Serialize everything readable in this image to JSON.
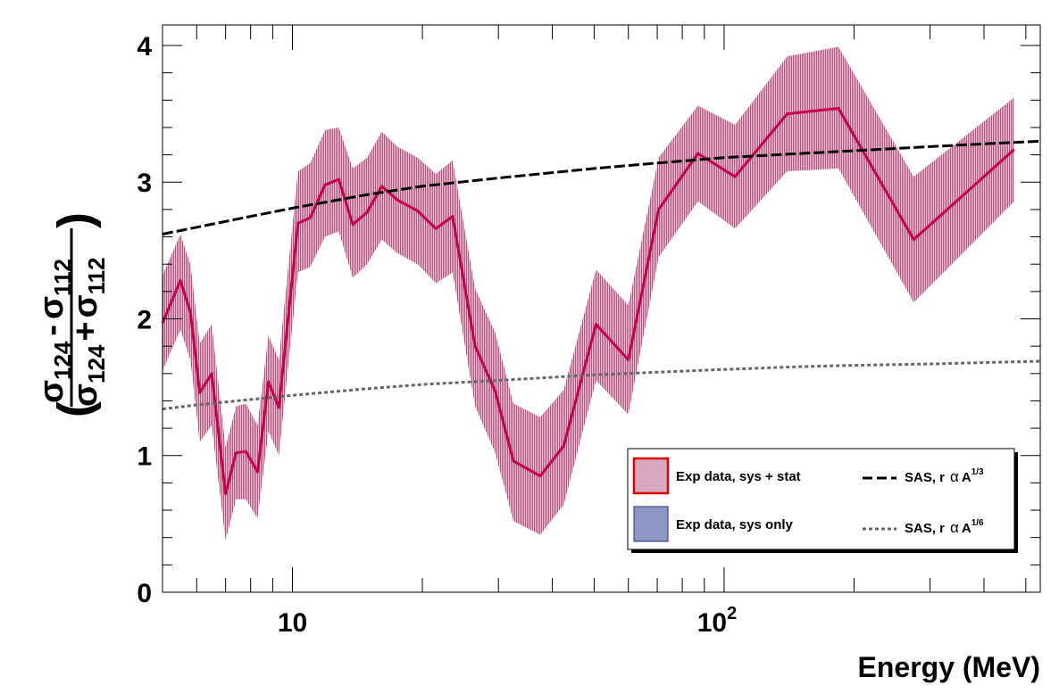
{
  "chart_data": {
    "type": "line",
    "xscale": "log",
    "xlim": [
      5,
      540
    ],
    "ylim": [
      0,
      4.15
    ],
    "xlabel": "Energy (MeV)",
    "ylabel": {
      "num_a": "σ",
      "num_a_sub": "124",
      "num_op": "-",
      "num_b": "σ",
      "num_b_sub": "112",
      "den_a": "σ",
      "den_a_sub": "124",
      "den_op": "+",
      "den_b": "σ",
      "den_b_sub": "112"
    },
    "x_ticks": [
      {
        "value": 10,
        "label": "10",
        "sup": ""
      },
      {
        "value": 100,
        "label": "10",
        "sup": "2"
      }
    ],
    "y_ticks": [
      {
        "value": 0,
        "label": "0"
      },
      {
        "value": 1,
        "label": "1"
      },
      {
        "value": 2,
        "label": "2"
      },
      {
        "value": 3,
        "label": "3"
      },
      {
        "value": 4,
        "label": "4"
      }
    ],
    "grid": false,
    "legend_position": "bottom-right",
    "series": [
      {
        "key": "exp_sys_stat",
        "name": "Exp data, sys + stat",
        "kind": "band_line",
        "color": "#c8004a",
        "band_color": "#c98aa8",
        "x": [
          5.0,
          5.5,
          5.8,
          6.1,
          6.5,
          7.0,
          7.4,
          7.8,
          8.3,
          8.8,
          9.3,
          10.3,
          11.0,
          11.9,
          12.8,
          13.8,
          14.9,
          16.1,
          17.5,
          19.5,
          21.5,
          23.5,
          26.5,
          29.5,
          32.5,
          37.5,
          42.5,
          50.5,
          60.0,
          70.5,
          87.0,
          106.0,
          140.0,
          184.0,
          275.0,
          470.0
        ],
        "y": [
          1.97,
          2.28,
          2.05,
          1.46,
          1.6,
          0.72,
          1.02,
          1.03,
          0.88,
          1.54,
          1.35,
          2.7,
          2.74,
          2.98,
          3.02,
          2.69,
          2.78,
          2.97,
          2.87,
          2.79,
          2.66,
          2.75,
          1.8,
          1.47,
          0.96,
          0.85,
          1.07,
          1.96,
          1.7,
          2.8,
          3.21,
          3.04,
          3.5,
          3.54,
          2.58,
          3.24
        ],
        "y_low": [
          1.62,
          1.92,
          1.7,
          1.1,
          1.22,
          0.38,
          0.68,
          0.68,
          0.54,
          1.18,
          1.0,
          2.34,
          2.38,
          2.6,
          2.64,
          2.3,
          2.4,
          2.58,
          2.48,
          2.4,
          2.26,
          2.34,
          1.36,
          1.02,
          0.52,
          0.42,
          0.64,
          1.55,
          1.3,
          2.45,
          2.86,
          2.66,
          3.08,
          3.1,
          2.12,
          2.86
        ],
        "y_high": [
          2.32,
          2.62,
          2.4,
          1.82,
          1.96,
          1.06,
          1.36,
          1.38,
          1.22,
          1.88,
          1.7,
          3.08,
          3.14,
          3.38,
          3.4,
          3.1,
          3.18,
          3.37,
          3.26,
          3.18,
          3.06,
          3.16,
          2.22,
          1.9,
          1.38,
          1.28,
          1.48,
          2.36,
          2.1,
          3.18,
          3.56,
          3.42,
          3.92,
          3.99,
          3.04,
          3.62
        ]
      },
      {
        "key": "exp_sys_only",
        "name": "Exp data, sys only",
        "kind": "band",
        "color": "#3a4a8c",
        "band_color": "#5a6aa8"
      },
      {
        "key": "sas_third",
        "name": "SAS, r",
        "name_symbol": "α",
        "name_base": "A",
        "name_sup": "1/3",
        "kind": "dashed",
        "color": "#000000",
        "x": [
          5.0,
          6,
          8,
          10,
          15,
          20,
          30,
          50,
          70,
          100,
          150,
          200,
          300,
          400,
          540
        ],
        "y": [
          2.62,
          2.67,
          2.75,
          2.81,
          2.91,
          2.97,
          3.03,
          3.1,
          3.14,
          3.18,
          3.21,
          3.23,
          3.26,
          3.28,
          3.3
        ]
      },
      {
        "key": "sas_sixth",
        "name": "SAS, r",
        "name_symbol": "α",
        "name_base": "A",
        "name_sup": "1/6",
        "kind": "dotted",
        "color": "#666666",
        "x": [
          5.0,
          6,
          8,
          10,
          15,
          20,
          30,
          50,
          70,
          100,
          150,
          200,
          300,
          400,
          540
        ],
        "y": [
          1.34,
          1.37,
          1.41,
          1.44,
          1.49,
          1.52,
          1.55,
          1.59,
          1.61,
          1.63,
          1.65,
          1.66,
          1.67,
          1.68,
          1.69
        ]
      }
    ]
  }
}
